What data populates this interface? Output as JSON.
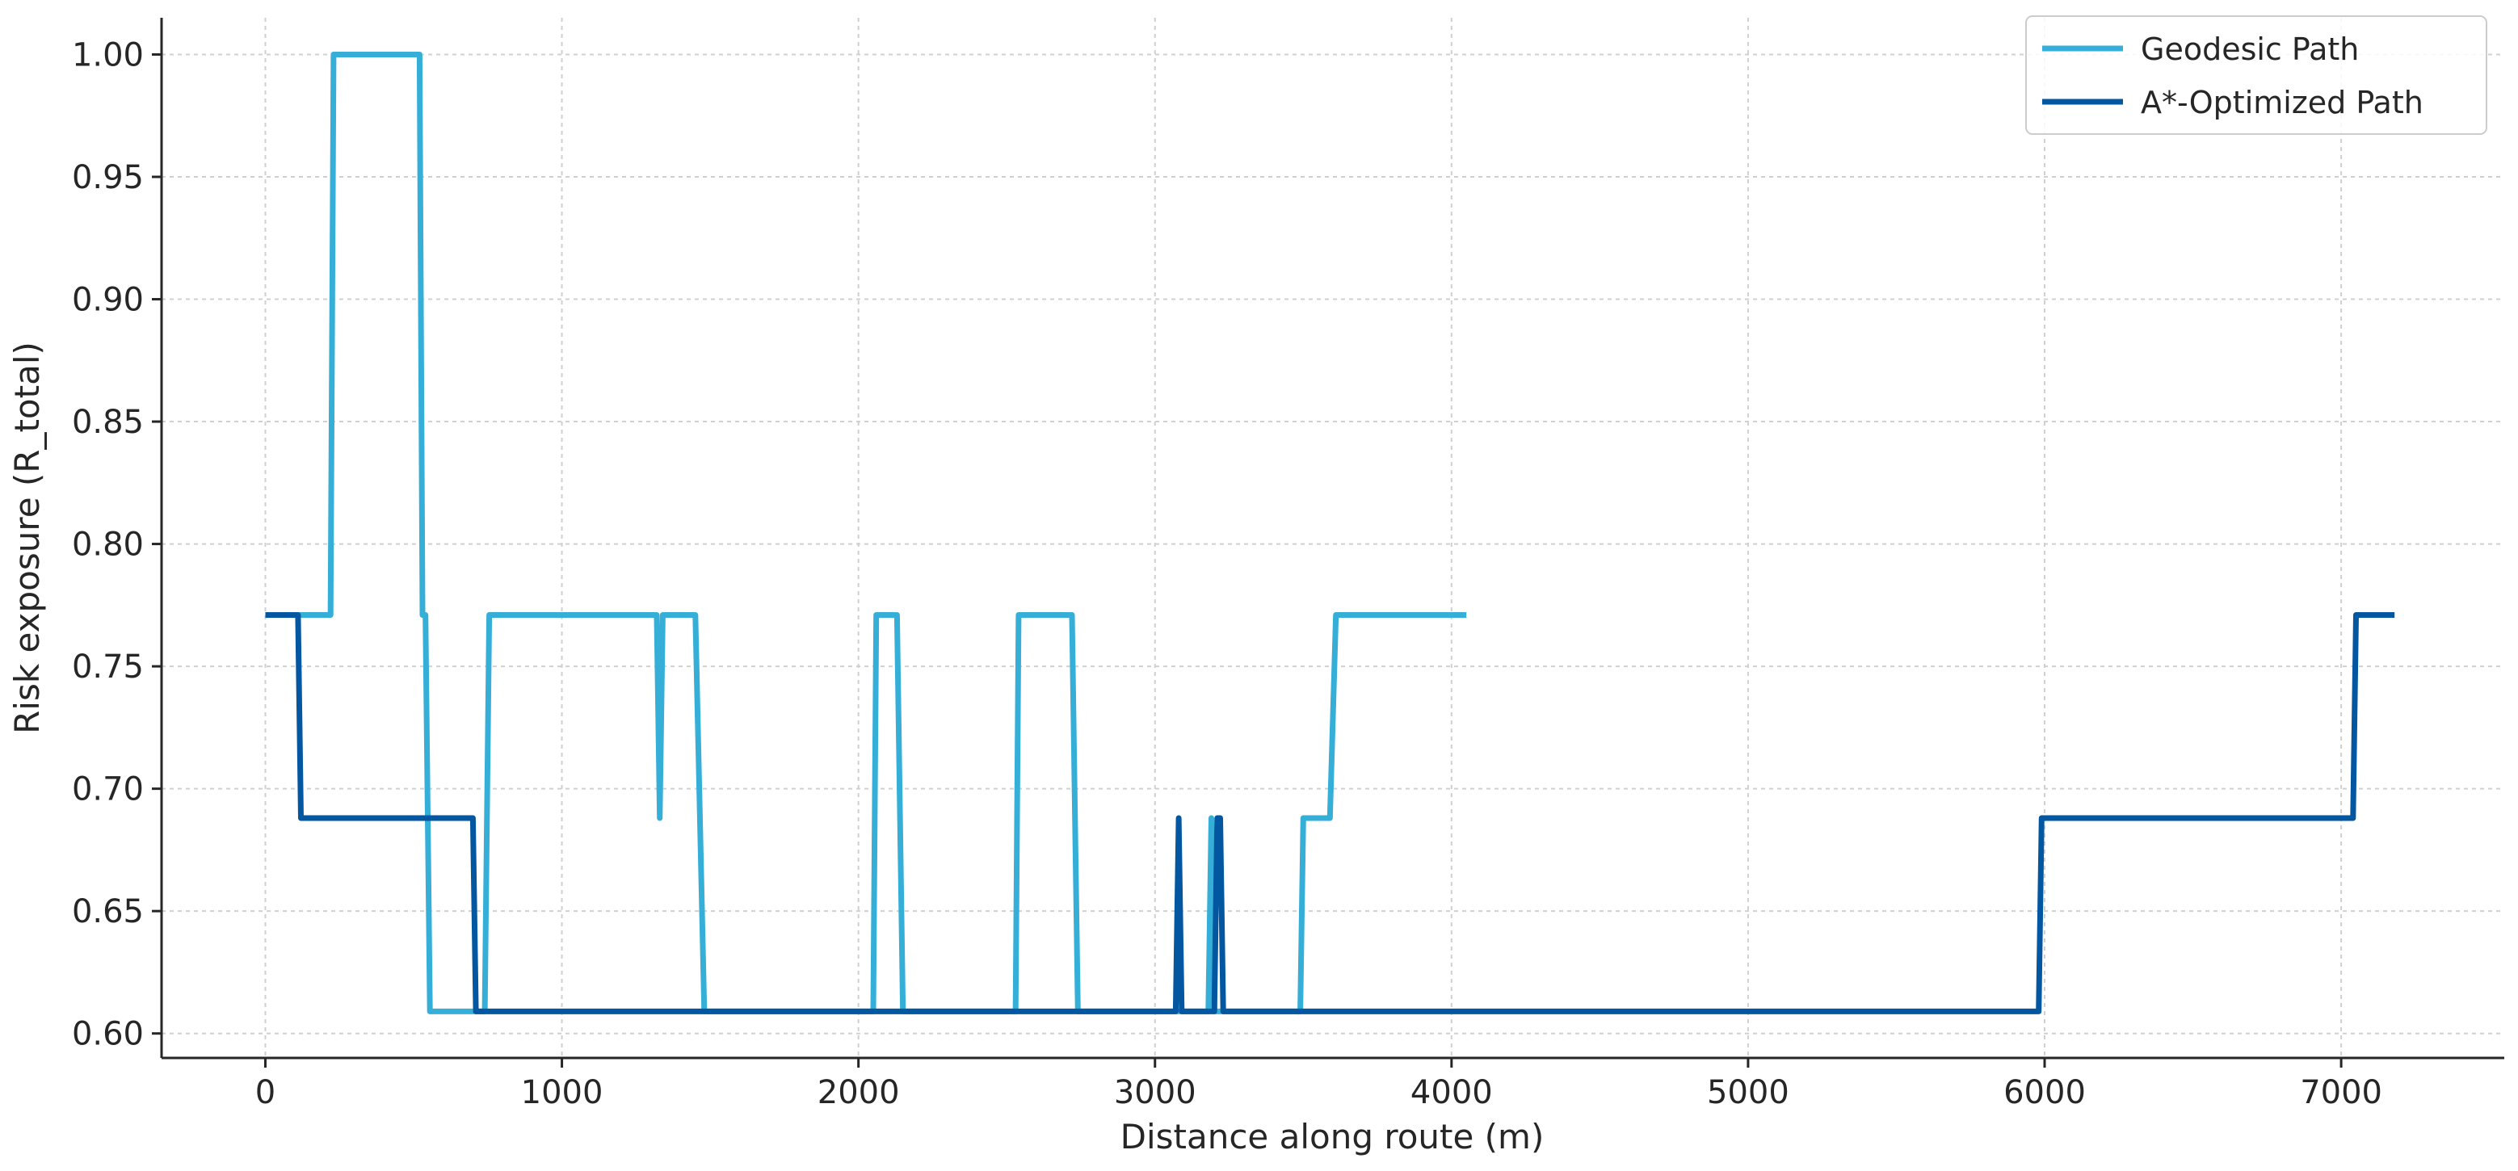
{
  "chart_data": {
    "type": "line",
    "title": "",
    "xlabel": "Distance along route (m)",
    "ylabel": "Risk exposure (R_total)",
    "xlim": [
      -350,
      7550
    ],
    "ylim": [
      0.59,
      1.015
    ],
    "xticks": [
      0,
      1000,
      2000,
      3000,
      4000,
      5000,
      6000,
      7000
    ],
    "xtick_labels": [
      "0",
      "1000",
      "2000",
      "3000",
      "4000",
      "5000",
      "6000",
      "7000"
    ],
    "yticks": [
      0.6,
      0.65,
      0.7,
      0.75,
      0.8,
      0.85,
      0.9,
      0.95,
      1.0
    ],
    "ytick_labels": [
      "0.60",
      "0.65",
      "0.70",
      "0.75",
      "0.80",
      "0.85",
      "0.90",
      "0.95",
      "1.00"
    ],
    "grid": true,
    "legend_position": "top-right",
    "series": [
      {
        "name": "Geodesic Path",
        "color": "#35AED8",
        "x": [
          0,
          220,
          230,
          520,
          530,
          540,
          555,
          740,
          755,
          1320,
          1330,
          1340,
          1350,
          1450,
          1480,
          2050,
          2060,
          2130,
          2150,
          2530,
          2540,
          2720,
          2740,
          3180,
          3190,
          3200,
          3490,
          3500,
          3590,
          3610,
          4050
        ],
        "y": [
          0.771,
          0.771,
          1.0,
          1.0,
          0.771,
          0.771,
          0.609,
          0.609,
          0.771,
          0.771,
          0.688,
          0.771,
          0.771,
          0.771,
          0.609,
          0.609,
          0.771,
          0.771,
          0.609,
          0.609,
          0.771,
          0.771,
          0.609,
          0.609,
          0.688,
          0.609,
          0.609,
          0.688,
          0.688,
          0.771,
          0.771
        ]
      },
      {
        "name": "A*-Optimized Path",
        "color": "#0356A0",
        "x": [
          0,
          110,
          120,
          700,
          710,
          3070,
          3080,
          3090,
          3200,
          3210,
          3220,
          3230,
          5980,
          5990,
          7040,
          7050,
          7180
        ],
        "y": [
          0.771,
          0.771,
          0.688,
          0.688,
          0.609,
          0.609,
          0.688,
          0.609,
          0.609,
          0.688,
          0.688,
          0.609,
          0.609,
          0.688,
          0.688,
          0.771,
          0.771
        ]
      }
    ]
  }
}
